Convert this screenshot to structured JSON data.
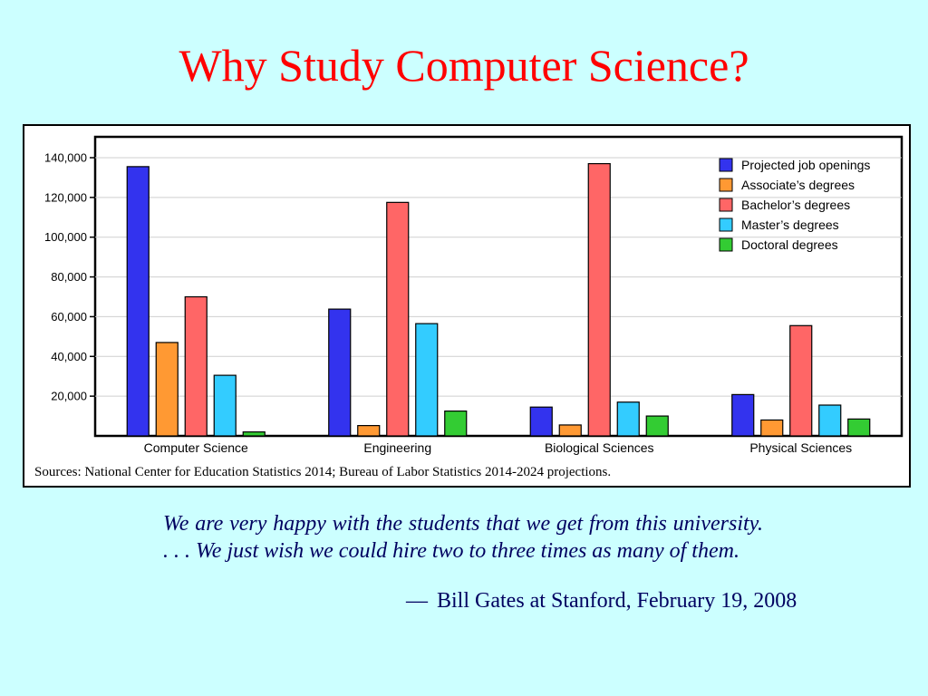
{
  "slide": {
    "title": "Why Study Computer Science?",
    "sources": "Sources: National Center for Education Statistics 2014; Bureau of Labor Statistics 2014-2024 projections.",
    "quote": "We are very happy with the students that we get from this university. . . .  We just wish we could hire two to three times as many of them.",
    "attribution_dash": "—",
    "attribution": "Bill Gates at Stanford, February 19, 2008"
  },
  "colors": {
    "background": "#ccffff",
    "title": "#ff0000",
    "quote_text": "#000060"
  },
  "chart_data": {
    "type": "bar",
    "categories": [
      "Computer Science",
      "Engineering",
      "Biological Sciences",
      "Physical Sciences"
    ],
    "series": [
      {
        "name": "Projected job openings",
        "color": "#3333ee",
        "values": [
          135500,
          63800,
          14500,
          20800
        ]
      },
      {
        "name": "Associate’s degrees",
        "color": "#ff9933",
        "values": [
          47000,
          5200,
          5500,
          8000
        ]
      },
      {
        "name": "Bachelor’s degrees",
        "color": "#ff6666",
        "values": [
          70000,
          117500,
          137000,
          55500
        ]
      },
      {
        "name": "Master’s degrees",
        "color": "#33ccff",
        "values": [
          30500,
          56500,
          17000,
          15500
        ]
      },
      {
        "name": "Doctoral degrees",
        "color": "#33cc33",
        "values": [
          2000,
          12500,
          10000,
          8500
        ]
      }
    ],
    "yticks": [
      20000,
      40000,
      60000,
      80000,
      100000,
      120000,
      140000
    ],
    "ytick_labels": [
      "20,000",
      "40,000",
      "60,000",
      "80,000",
      "100,000",
      "120,000",
      "140,000"
    ],
    "ylim": [
      0,
      140000
    ],
    "grid": true,
    "legend_position": "top-right"
  }
}
